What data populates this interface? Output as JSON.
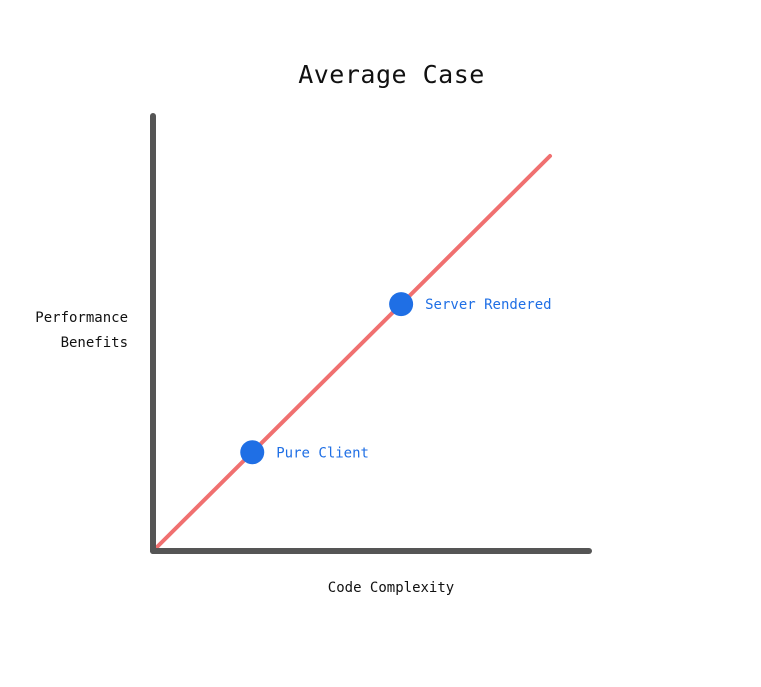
{
  "chart_data": {
    "type": "line",
    "title": "Average Case",
    "xlabel": "Code Complexity",
    "ylabel_lines": [
      "Performance",
      "Benefits"
    ],
    "xlim": [
      0,
      1
    ],
    "ylim": [
      0,
      1
    ],
    "series": [
      {
        "x": [
          0,
          1
        ],
        "y": [
          0,
          1
        ],
        "color": "#f07070"
      }
    ],
    "points": [
      {
        "label": "Pure Client",
        "x": 0.25,
        "y": 0.25
      },
      {
        "label": "Server Rendered",
        "x": 0.625,
        "y": 0.625
      }
    ],
    "point_color": "#1f6fe5",
    "axis_color": "#555555",
    "grid": false
  }
}
